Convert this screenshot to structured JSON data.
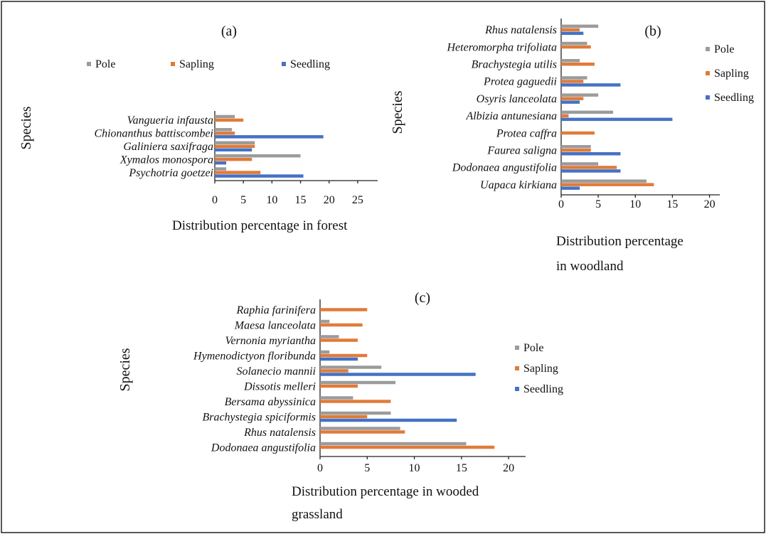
{
  "colors": {
    "pole": "#9b9b9b",
    "sapling": "#e07b39",
    "seedling": "#4472c4",
    "axis": "#222222"
  },
  "chart_data": [
    {
      "type": "bar",
      "orientation": "horizontal",
      "panel_label": "(a)",
      "xlabel": "Distribution percentage in forest",
      "ylabel": "Species",
      "xlim": [
        0,
        28
      ],
      "xticks": [
        "0",
        "5",
        "10",
        "15",
        "20",
        "25"
      ],
      "xtick_values": [
        0,
        5,
        10,
        15,
        20,
        25
      ],
      "legend": [
        "Pole",
        "Sapling",
        "Seedling"
      ],
      "legend_position": "top",
      "categories": [
        "Vangueria infausta",
        "Chionanthus battiscombei",
        "Galiniera saxifraga",
        "Xymalos monospora",
        "Psychotria goetzei"
      ],
      "series": [
        {
          "name": "Pole",
          "values": [
            3.5,
            3,
            7,
            15,
            2
          ]
        },
        {
          "name": "Sapling",
          "values": [
            5,
            3.5,
            7,
            6.5,
            8
          ]
        },
        {
          "name": "Seedling",
          "values": [
            0,
            19,
            6.5,
            2,
            15.5
          ]
        }
      ]
    },
    {
      "type": "bar",
      "orientation": "horizontal",
      "panel_label": "(b)",
      "xlabel": "Distribution percentage in woodland",
      "ylabel": "Species",
      "xlim": [
        0,
        21
      ],
      "xticks": [
        "0",
        "5",
        "10",
        "15",
        "20"
      ],
      "xtick_values": [
        0,
        5,
        10,
        15,
        20
      ],
      "legend": [
        "Pole",
        "Sapling",
        "Seedling"
      ],
      "legend_position": "right",
      "categories": [
        "Rhus natalensis",
        "Heteromorpha trifoliata",
        "Brachystegia utilis",
        "Protea gaguedii",
        "Osyris lanceolata",
        "Albizia antunesiana",
        "Protea caffra",
        "Faurea saligna",
        "Dodonaea angustifolia",
        "Uapaca kirkiana"
      ],
      "series": [
        {
          "name": "Pole",
          "values": [
            5,
            3.5,
            2.5,
            3.5,
            5,
            7,
            0,
            4,
            5,
            11.5
          ]
        },
        {
          "name": "Sapling",
          "values": [
            2.5,
            4,
            4.5,
            3,
            3,
            1,
            4.5,
            4,
            7.5,
            12.5
          ]
        },
        {
          "name": "Seedling",
          "values": [
            3,
            0,
            0,
            8,
            2.5,
            15,
            0,
            8,
            8,
            2.5
          ]
        }
      ]
    },
    {
      "type": "bar",
      "orientation": "horizontal",
      "panel_label": "(c)",
      "xlabel": "Distribution percentage in wooded grassland",
      "ylabel": "Species",
      "xlim": [
        0,
        21.5
      ],
      "xticks": [
        "0",
        "5",
        "10",
        "15",
        "20"
      ],
      "xtick_values": [
        0,
        5,
        10,
        15,
        20
      ],
      "legend": [
        "Pole",
        "Sapling",
        "Seedling"
      ],
      "legend_position": "right",
      "categories": [
        "Raphia farinifera",
        "Maesa lanceolata",
        "Vernonia myriantha",
        "Hymenodictyon floribunda",
        "Solanecio mannii",
        "Dissotis melleri",
        "Bersama abyssinica",
        "Brachystegia spiciformis",
        "Rhus natalensis",
        "Dodonaea angustifolia"
      ],
      "series": [
        {
          "name": "Pole",
          "values": [
            0,
            1,
            2,
            1,
            6.5,
            8,
            3.5,
            7.5,
            8.5,
            15.5
          ]
        },
        {
          "name": "Sapling",
          "values": [
            5,
            4.5,
            4,
            5,
            3,
            4,
            7.5,
            5,
            9,
            18.5
          ]
        },
        {
          "name": "Seedling",
          "values": [
            0,
            0,
            0,
            4,
            16.5,
            0,
            0,
            14.5,
            0,
            0
          ]
        }
      ]
    }
  ]
}
